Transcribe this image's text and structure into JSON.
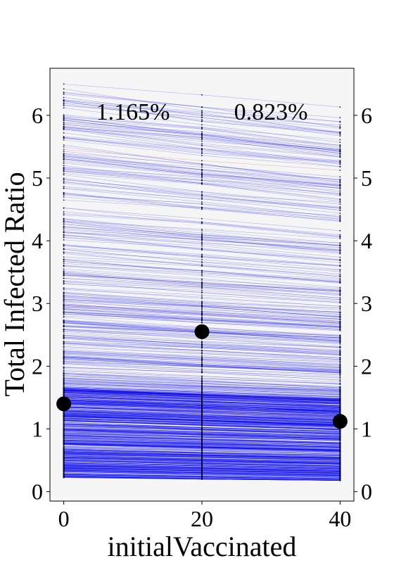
{
  "chart_data": {
    "type": "line",
    "title": "",
    "xlabel": "initialVaccinated",
    "ylabel": "Total Infected Ratio",
    "x": [
      0,
      20,
      40
    ],
    "x_ticks": [
      {
        "value": 0,
        "label": "0"
      },
      {
        "value": 20,
        "label": "20"
      },
      {
        "value": 40,
        "label": "40"
      }
    ],
    "y_ticks": [
      {
        "value": 0,
        "label": "0"
      },
      {
        "value": 1,
        "label": "1"
      },
      {
        "value": 2,
        "label": "2"
      },
      {
        "value": 3,
        "label": "3"
      },
      {
        "value": 4,
        "label": "4"
      },
      {
        "value": 5,
        "label": "5"
      },
      {
        "value": 6,
        "label": "6"
      }
    ],
    "xlim": [
      -2,
      42
    ],
    "ylim": [
      -0.15,
      6.75
    ],
    "mean_points": [
      {
        "x": 0,
        "y": 1.4
      },
      {
        "x": 20,
        "y": 2.55
      },
      {
        "x": 40,
        "y": 1.12
      }
    ],
    "annotations": [
      {
        "text": "1.165%",
        "x": 10,
        "y": 6.1
      },
      {
        "text": "0.823%",
        "x": 30,
        "y": 6.1
      }
    ],
    "colors": {
      "lines": "#0000ee",
      "highlight_lines": "#e08080",
      "points": "#000000",
      "plot_background": "#f5f5f5"
    },
    "grid": false,
    "legend": "none"
  }
}
